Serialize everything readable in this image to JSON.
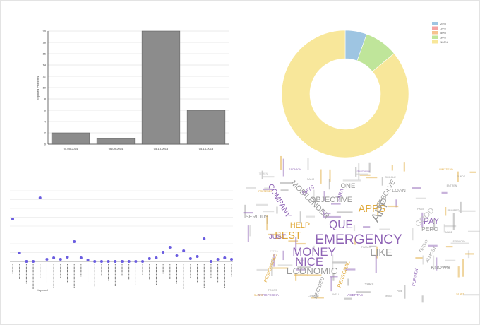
{
  "colors": {
    "bar_fill": "#8c8c8c",
    "bar_stroke": "#555555",
    "dot": "#6a5ce0",
    "purple": "#8e63b5",
    "gold": "#e0a93a",
    "gray": "#999999",
    "lightgray": "#c4c4c4"
  },
  "chart_data": [
    {
      "type": "bar",
      "ylabel": "Reported Problems",
      "ylim": [
        0,
        20
      ],
      "yticks": [
        "0",
        "2",
        "4",
        "6",
        "8",
        "10",
        "12",
        "14",
        "16",
        "18",
        "20"
      ],
      "categories": [
        "05-05-2014",
        "06-09-2014",
        "05-13-2015",
        "05-14-2015"
      ],
      "values": [
        2,
        1,
        20,
        6
      ]
    },
    {
      "type": "pie",
      "legend": [
        "25%",
        "10%",
        "50%",
        "30%",
        "100%"
      ],
      "slices": [
        {
          "label": "25%",
          "value": 5.5,
          "color": "#9ec5e2"
        },
        {
          "label": "10%",
          "value": 0,
          "color": "#f4a3a3"
        },
        {
          "label": "50%",
          "value": 0,
          "color": "#f6c28f"
        },
        {
          "label": "30%",
          "value": 8.5,
          "color": "#bfe59a"
        },
        {
          "label": "100%",
          "value": 86,
          "color": "#f8e79a"
        }
      ]
    },
    {
      "type": "scatter",
      "xlabel": "Keyword",
      "values": [
        6,
        1.2,
        0,
        0,
        9,
        0.3,
        0.5,
        0.3,
        0.6,
        2.8,
        0.5,
        0.2,
        0,
        0,
        0,
        0,
        0,
        0,
        0,
        0,
        0.4,
        0.5,
        1.3,
        2,
        0.8,
        1.5,
        0.4,
        0.7,
        3.2,
        0,
        0.3,
        0.5,
        0.3
      ]
    }
  ],
  "wordcloud": [
    {
      "text": "EMERGENCY",
      "color": "purple",
      "size": 16
    },
    {
      "text": "MONEY",
      "color": "purple",
      "size": 14
    },
    {
      "text": "NICE",
      "color": "purple",
      "size": 14
    },
    {
      "text": "QUE",
      "color": "purple",
      "size": 13
    },
    {
      "text": "APP",
      "color": "gray",
      "size": 15
    },
    {
      "text": "APPS",
      "color": "gold",
      "size": 12
    },
    {
      "text": "BEST",
      "color": "gold",
      "size": 12
    },
    {
      "text": "LIKE",
      "color": "gray",
      "size": 12
    },
    {
      "text": "ECONOMIC",
      "color": "gray",
      "size": 11
    },
    {
      "text": "COMPANY",
      "color": "purple",
      "size": 9
    },
    {
      "text": "MOBILENDER",
      "color": "gray",
      "size": 9
    },
    {
      "text": "OBJECTIVE",
      "color": "gray",
      "size": 9
    },
    {
      "text": "PAY",
      "color": "purple",
      "size": 10
    },
    {
      "text": "RESOLVE",
      "color": "gray",
      "size": 8
    },
    {
      "text": "HELP",
      "color": "gold",
      "size": 9
    },
    {
      "text": "GOOD",
      "color": "lightgray",
      "size": 9
    },
    {
      "text": "JUST",
      "color": "purple",
      "size": 8
    },
    {
      "text": "ONE",
      "color": "gray",
      "size": 8
    },
    {
      "text": "PERO",
      "color": "gray",
      "size": 7
    },
    {
      "text": "PARA",
      "color": "purple",
      "size": 6
    },
    {
      "text": "DAYS",
      "color": "purple",
      "size": 6
    },
    {
      "text": "LOAN",
      "color": "gray",
      "size": 6
    },
    {
      "text": "KNOWS",
      "color": "gray",
      "size": 6
    },
    {
      "text": "SERIOUS",
      "color": "gray",
      "size": 6
    },
    {
      "text": "RESPONSIBLE",
      "color": "gold",
      "size": 5
    },
    {
      "text": "PERSONAL",
      "color": "gold",
      "size": 6
    },
    {
      "text": "DECIDED",
      "color": "gray",
      "size": 6
    },
    {
      "text": "PUEDEN",
      "color": "purple",
      "size": 5
    },
    {
      "text": "ALMOST",
      "color": "gray",
      "size": 5
    },
    {
      "text": "TERMS",
      "color": "gray",
      "size": 5
    },
    {
      "text": "THKS",
      "color": "gray",
      "size": 4
    },
    {
      "text": "SATISFECHA",
      "color": "purple",
      "size": 4
    },
    {
      "text": "ACEPTAS",
      "color": "purple",
      "size": 4
    },
    {
      "text": "COBRAR",
      "color": "gray",
      "size": 3
    },
    {
      "text": "WELL",
      "color": "gray",
      "size": 3
    },
    {
      "text": "TODOS",
      "color": "gray",
      "size": 3
    },
    {
      "text": "SUPER",
      "color": "gold",
      "size": 3
    },
    {
      "text": "PIDE",
      "color": "gray",
      "size": 3
    },
    {
      "text": "PRETENDS",
      "color": "gold",
      "size": 3
    },
    {
      "text": "TEMEN",
      "color": "lightgray",
      "size": 3
    },
    {
      "text": "SACARON",
      "color": "purple",
      "size": 3
    },
    {
      "text": "UTILIZARLA",
      "color": "purple",
      "size": 3
    },
    {
      "text": "GOOGLE",
      "color": "gray",
      "size": 3
    },
    {
      "text": "PRIMERO",
      "color": "gray",
      "size": 3
    },
    {
      "text": "MADE",
      "color": "gray",
      "size": 3
    },
    {
      "text": "SERVICIO",
      "color": "gray",
      "size": 3
    },
    {
      "text": "FUNDS",
      "color": "gray",
      "size": 3
    },
    {
      "text": "ENTREN",
      "color": "gray",
      "size": 3
    },
    {
      "text": "PINIXDEAD",
      "color": "gold",
      "size": 3
    },
    {
      "text": "STUFF",
      "color": "gold",
      "size": 3
    },
    {
      "text": "MOBI",
      "color": "gray",
      "size": 3
    },
    {
      "text": "THANKS",
      "color": "gray",
      "size": 3
    },
    {
      "text": "EXTRA",
      "color": "lightgray",
      "size": 3
    },
    {
      "text": "PAGE",
      "color": "gray",
      "size": 3
    },
    {
      "text": "SALIR",
      "color": "gray",
      "size": 3
    }
  ]
}
